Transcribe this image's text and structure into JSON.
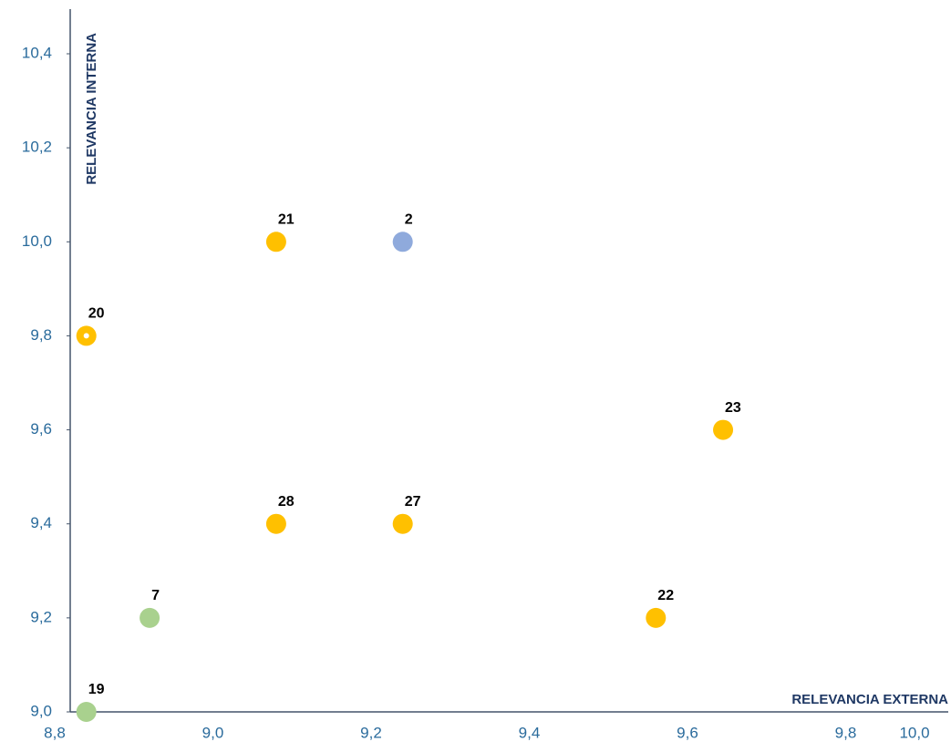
{
  "chart_data": {
    "type": "scatter",
    "x_label": "RELEVANCIA EXTERNA",
    "y_label": "RELEVANCIA INTERNA",
    "xlim": [
      8.8,
      10.0
    ],
    "xticks": [
      {
        "value": 8.8,
        "label": "8,8"
      },
      {
        "value": 9.0,
        "label": "9,0"
      },
      {
        "value": 9.2,
        "label": "9,2"
      },
      {
        "value": 9.4,
        "label": "9,4"
      },
      {
        "value": 9.6,
        "label": "9,6"
      },
      {
        "value": 9.8,
        "label": "9,8"
      },
      {
        "value": 10.0,
        "label": "10,0"
      }
    ],
    "ylim": [
      9.0,
      10.4
    ],
    "yticks": [
      {
        "value": 9.0,
        "label": "9,0"
      },
      {
        "value": 9.2,
        "label": "9,2"
      },
      {
        "value": 9.4,
        "label": "9,4"
      },
      {
        "value": 9.6,
        "label": "9,6"
      },
      {
        "value": 9.8,
        "label": "9,8"
      },
      {
        "value": 10.0,
        "label": "10,0"
      },
      {
        "value": 10.2,
        "label": "10,2"
      },
      {
        "value": 10.4,
        "label": "10,4"
      }
    ],
    "points": [
      {
        "label": "19",
        "x": 8.84,
        "y": 9.0,
        "color": "#a9d18e"
      },
      {
        "label": "20",
        "x": 8.84,
        "y": 9.8,
        "color": "#ffc000",
        "ring": true
      },
      {
        "label": "7",
        "x": 8.92,
        "y": 9.2,
        "color": "#a9d18e"
      },
      {
        "label": "21",
        "x": 9.08,
        "y": 10.0,
        "color": "#ffc000"
      },
      {
        "label": "28",
        "x": 9.08,
        "y": 9.4,
        "color": "#ffc000"
      },
      {
        "label": "2",
        "x": 9.24,
        "y": 10.0,
        "color": "#8faadc"
      },
      {
        "label": "27",
        "x": 9.24,
        "y": 9.4,
        "color": "#ffc000"
      },
      {
        "label": "22",
        "x": 9.56,
        "y": 9.2,
        "color": "#ffc000"
      },
      {
        "label": "23",
        "x": 9.645,
        "y": 9.6,
        "color": "#ffc000"
      }
    ]
  }
}
